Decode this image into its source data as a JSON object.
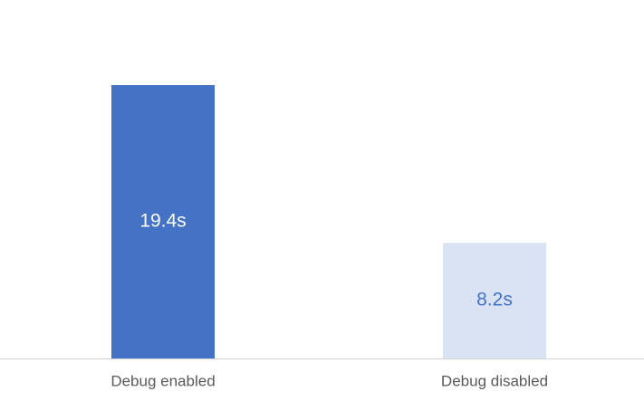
{
  "chart_data": {
    "type": "bar",
    "categories": [
      "Debug enabled",
      "Debug disabled"
    ],
    "values": [
      19.4,
      8.2
    ],
    "value_labels": [
      "19.4s",
      "8.2s"
    ],
    "colors": [
      "#4472c4",
      "#dae3f3"
    ]
  }
}
